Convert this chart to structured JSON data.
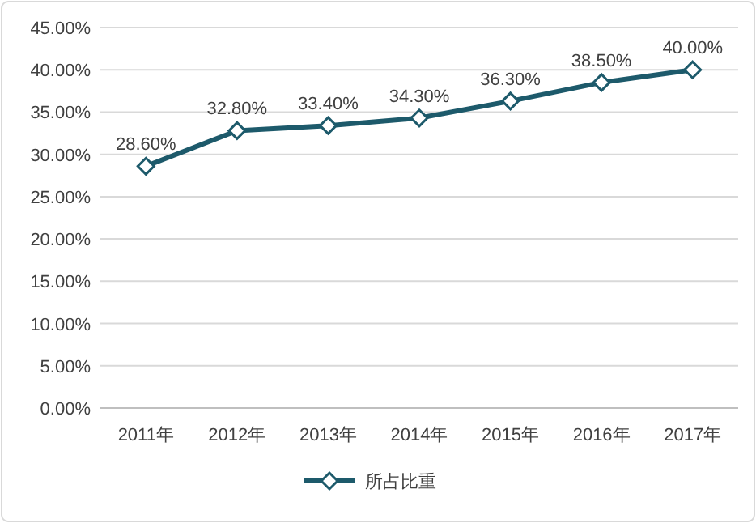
{
  "chart_data": {
    "type": "line",
    "categories": [
      "2011年",
      "2012年",
      "2013年",
      "2014年",
      "2015年",
      "2016年",
      "2017年"
    ],
    "series": [
      {
        "name": "所占比重",
        "color": "#1d5a6b",
        "values": [
          28.6,
          32.8,
          33.4,
          34.3,
          36.3,
          38.5,
          40.0
        ],
        "value_labels": [
          "28.60%",
          "32.80%",
          "33.40%",
          "34.30%",
          "36.30%",
          "38.50%",
          "40.00%"
        ]
      }
    ],
    "ylim": [
      0,
      45
    ],
    "yticks": [
      {
        "value": 0,
        "label": "0.00%"
      },
      {
        "value": 5,
        "label": "5.00%"
      },
      {
        "value": 10,
        "label": "10.00%"
      },
      {
        "value": 15,
        "label": "15.00%"
      },
      {
        "value": 20,
        "label": "20.00%"
      },
      {
        "value": 25,
        "label": "25.00%"
      },
      {
        "value": 30,
        "label": "30.00%"
      },
      {
        "value": 35,
        "label": "35.00%"
      },
      {
        "value": 40,
        "label": "40.00%"
      },
      {
        "value": 45,
        "label": "45.00%"
      }
    ],
    "grid": "y",
    "legend": "bottom",
    "marker": "diamond",
    "line_style": "solid"
  }
}
